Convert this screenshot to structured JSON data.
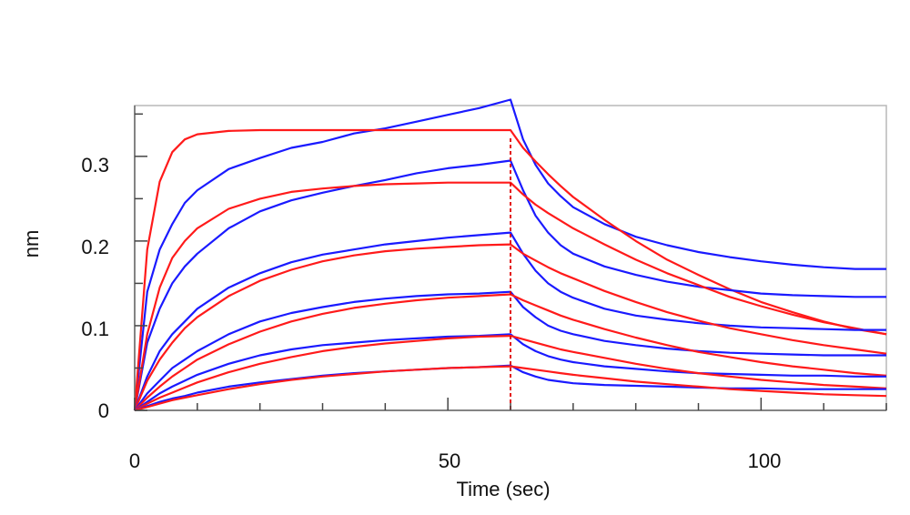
{
  "chart_data": {
    "type": "line",
    "title": "",
    "xlabel": "Time (sec)",
    "ylabel": "nm",
    "xlim": [
      0,
      120
    ],
    "ylim": [
      0,
      0.36
    ],
    "x_ticks": [
      0,
      50,
      100
    ],
    "x_tick_labels": [
      "0",
      "50",
      "100"
    ],
    "y_ticks": [
      0,
      0.1,
      0.2,
      0.3
    ],
    "y_tick_labels": [
      "0",
      "0.1",
      "0.2",
      "0.3"
    ],
    "grid": false,
    "legend": false,
    "dissociation_start": 60,
    "colors": {
      "measured": "#1a1aff",
      "fit": "#ff1a1a",
      "divider": "#e00000"
    },
    "series": [
      {
        "kind": "measured",
        "x": [
          0,
          2,
          4,
          6,
          8,
          10,
          15,
          20,
          25,
          30,
          35,
          40,
          45,
          50,
          55,
          60,
          62,
          64,
          66,
          68,
          70,
          75,
          80,
          85,
          90,
          95,
          100,
          105,
          110,
          115,
          120
        ],
        "y": [
          0,
          0.14,
          0.19,
          0.22,
          0.245,
          0.26,
          0.285,
          0.298,
          0.31,
          0.317,
          0.327,
          0.333,
          0.341,
          0.349,
          0.357,
          0.367,
          0.32,
          0.29,
          0.268,
          0.253,
          0.24,
          0.22,
          0.205,
          0.195,
          0.187,
          0.181,
          0.176,
          0.172,
          0.169,
          0.167,
          0.167
        ]
      },
      {
        "kind": "fit",
        "x": [
          0,
          2,
          4,
          6,
          8,
          10,
          15,
          20,
          25,
          30,
          35,
          40,
          45,
          50,
          55,
          60,
          62,
          64,
          66,
          68,
          70,
          75,
          80,
          85,
          90,
          95,
          100,
          105,
          110,
          115,
          120
        ],
        "y": [
          0,
          0.19,
          0.27,
          0.305,
          0.32,
          0.326,
          0.33,
          0.331,
          0.331,
          0.331,
          0.331,
          0.331,
          0.331,
          0.331,
          0.331,
          0.331,
          0.31,
          0.294,
          0.279,
          0.265,
          0.252,
          0.225,
          0.2,
          0.178,
          0.16,
          0.143,
          0.128,
          0.116,
          0.105,
          0.096,
          0.09
        ]
      },
      {
        "kind": "measured",
        "x": [
          0,
          2,
          4,
          6,
          8,
          10,
          15,
          20,
          25,
          30,
          35,
          40,
          45,
          50,
          55,
          60,
          62,
          64,
          66,
          68,
          70,
          75,
          80,
          85,
          90,
          95,
          100,
          105,
          110,
          115,
          120
        ],
        "y": [
          0,
          0.08,
          0.12,
          0.15,
          0.17,
          0.185,
          0.215,
          0.235,
          0.248,
          0.257,
          0.265,
          0.272,
          0.28,
          0.286,
          0.29,
          0.295,
          0.26,
          0.23,
          0.21,
          0.195,
          0.185,
          0.17,
          0.16,
          0.152,
          0.146,
          0.142,
          0.138,
          0.136,
          0.135,
          0.134,
          0.134
        ]
      },
      {
        "kind": "fit",
        "x": [
          0,
          2,
          4,
          6,
          8,
          10,
          15,
          20,
          25,
          30,
          35,
          40,
          45,
          50,
          55,
          60,
          62,
          64,
          66,
          68,
          70,
          75,
          80,
          85,
          90,
          95,
          100,
          105,
          110,
          115,
          120
        ],
        "y": [
          0,
          0.09,
          0.145,
          0.18,
          0.2,
          0.215,
          0.238,
          0.25,
          0.258,
          0.262,
          0.265,
          0.267,
          0.268,
          0.269,
          0.269,
          0.269,
          0.255,
          0.243,
          0.233,
          0.224,
          0.215,
          0.196,
          0.178,
          0.162,
          0.148,
          0.134,
          0.123,
          0.113,
          0.104,
          0.097,
          0.09
        ]
      },
      {
        "kind": "measured",
        "x": [
          0,
          2,
          4,
          6,
          8,
          10,
          15,
          20,
          25,
          30,
          35,
          40,
          45,
          50,
          55,
          60,
          62,
          64,
          66,
          68,
          70,
          75,
          80,
          85,
          90,
          95,
          100,
          105,
          110,
          115,
          120
        ],
        "y": [
          0,
          0.04,
          0.07,
          0.09,
          0.105,
          0.12,
          0.145,
          0.162,
          0.175,
          0.184,
          0.19,
          0.196,
          0.2,
          0.204,
          0.207,
          0.21,
          0.185,
          0.165,
          0.15,
          0.14,
          0.133,
          0.12,
          0.112,
          0.107,
          0.103,
          0.1,
          0.098,
          0.097,
          0.096,
          0.095,
          0.095
        ]
      },
      {
        "kind": "fit",
        "x": [
          0,
          2,
          4,
          6,
          8,
          10,
          15,
          20,
          25,
          30,
          35,
          40,
          45,
          50,
          55,
          60,
          62,
          64,
          66,
          68,
          70,
          75,
          80,
          85,
          90,
          95,
          100,
          105,
          110,
          115,
          120
        ],
        "y": [
          0,
          0.035,
          0.06,
          0.08,
          0.097,
          0.11,
          0.135,
          0.153,
          0.166,
          0.176,
          0.183,
          0.188,
          0.191,
          0.193,
          0.195,
          0.196,
          0.185,
          0.177,
          0.169,
          0.162,
          0.156,
          0.141,
          0.128,
          0.116,
          0.106,
          0.097,
          0.09,
          0.083,
          0.077,
          0.072,
          0.067
        ]
      },
      {
        "kind": "measured",
        "x": [
          0,
          2,
          4,
          6,
          8,
          10,
          15,
          20,
          25,
          30,
          35,
          40,
          45,
          50,
          55,
          60,
          62,
          64,
          66,
          68,
          70,
          75,
          80,
          85,
          90,
          95,
          100,
          105,
          110,
          115,
          120
        ],
        "y": [
          0,
          0.02,
          0.035,
          0.05,
          0.06,
          0.07,
          0.09,
          0.105,
          0.115,
          0.122,
          0.128,
          0.132,
          0.135,
          0.137,
          0.138,
          0.14,
          0.122,
          0.11,
          0.1,
          0.094,
          0.09,
          0.082,
          0.077,
          0.073,
          0.07,
          0.068,
          0.067,
          0.066,
          0.065,
          0.065,
          0.065
        ]
      },
      {
        "kind": "fit",
        "x": [
          0,
          2,
          4,
          6,
          8,
          10,
          15,
          20,
          25,
          30,
          35,
          40,
          45,
          50,
          55,
          60,
          62,
          64,
          66,
          68,
          70,
          75,
          80,
          85,
          90,
          95,
          100,
          105,
          110,
          115,
          120
        ],
        "y": [
          0,
          0.015,
          0.028,
          0.04,
          0.05,
          0.06,
          0.078,
          0.093,
          0.105,
          0.114,
          0.121,
          0.126,
          0.13,
          0.133,
          0.135,
          0.137,
          0.13,
          0.124,
          0.118,
          0.112,
          0.107,
          0.096,
          0.086,
          0.077,
          0.069,
          0.063,
          0.057,
          0.052,
          0.048,
          0.044,
          0.041
        ]
      },
      {
        "kind": "measured",
        "x": [
          0,
          2,
          4,
          6,
          8,
          10,
          15,
          20,
          25,
          30,
          35,
          40,
          45,
          50,
          55,
          60,
          62,
          64,
          66,
          68,
          70,
          75,
          80,
          85,
          90,
          95,
          100,
          105,
          110,
          115,
          120
        ],
        "y": [
          0,
          0.01,
          0.02,
          0.028,
          0.035,
          0.042,
          0.055,
          0.065,
          0.072,
          0.077,
          0.08,
          0.083,
          0.085,
          0.087,
          0.088,
          0.09,
          0.078,
          0.07,
          0.064,
          0.06,
          0.057,
          0.052,
          0.049,
          0.046,
          0.044,
          0.043,
          0.042,
          0.041,
          0.041,
          0.04,
          0.04
        ]
      },
      {
        "kind": "fit",
        "x": [
          0,
          2,
          4,
          6,
          8,
          10,
          15,
          20,
          25,
          30,
          35,
          40,
          45,
          50,
          55,
          60,
          62,
          64,
          66,
          68,
          70,
          75,
          80,
          85,
          90,
          95,
          100,
          105,
          110,
          115,
          120
        ],
        "y": [
          0,
          0.008,
          0.015,
          0.021,
          0.027,
          0.033,
          0.045,
          0.055,
          0.063,
          0.07,
          0.075,
          0.079,
          0.082,
          0.085,
          0.087,
          0.088,
          0.084,
          0.08,
          0.076,
          0.072,
          0.069,
          0.062,
          0.055,
          0.049,
          0.044,
          0.04,
          0.036,
          0.033,
          0.03,
          0.028,
          0.026
        ]
      },
      {
        "kind": "measured",
        "x": [
          0,
          2,
          4,
          6,
          8,
          10,
          15,
          20,
          25,
          30,
          35,
          40,
          45,
          50,
          55,
          60,
          62,
          64,
          66,
          68,
          70,
          75,
          80,
          85,
          90,
          95,
          100,
          105,
          110,
          115,
          120
        ],
        "y": [
          0,
          0.005,
          0.01,
          0.014,
          0.017,
          0.021,
          0.028,
          0.033,
          0.037,
          0.041,
          0.044,
          0.046,
          0.048,
          0.05,
          0.051,
          0.053,
          0.045,
          0.04,
          0.036,
          0.034,
          0.032,
          0.03,
          0.029,
          0.028,
          0.027,
          0.026,
          0.026,
          0.025,
          0.025,
          0.025,
          0.025
        ]
      },
      {
        "kind": "fit",
        "x": [
          0,
          2,
          4,
          6,
          8,
          10,
          15,
          20,
          25,
          30,
          35,
          40,
          45,
          50,
          55,
          60,
          62,
          64,
          66,
          68,
          70,
          75,
          80,
          85,
          90,
          95,
          100,
          105,
          110,
          115,
          120
        ],
        "y": [
          0,
          0.004,
          0.008,
          0.012,
          0.015,
          0.018,
          0.025,
          0.031,
          0.036,
          0.04,
          0.043,
          0.046,
          0.048,
          0.05,
          0.051,
          0.052,
          0.05,
          0.048,
          0.046,
          0.044,
          0.042,
          0.038,
          0.034,
          0.031,
          0.028,
          0.025,
          0.023,
          0.021,
          0.019,
          0.018,
          0.017
        ]
      }
    ]
  }
}
